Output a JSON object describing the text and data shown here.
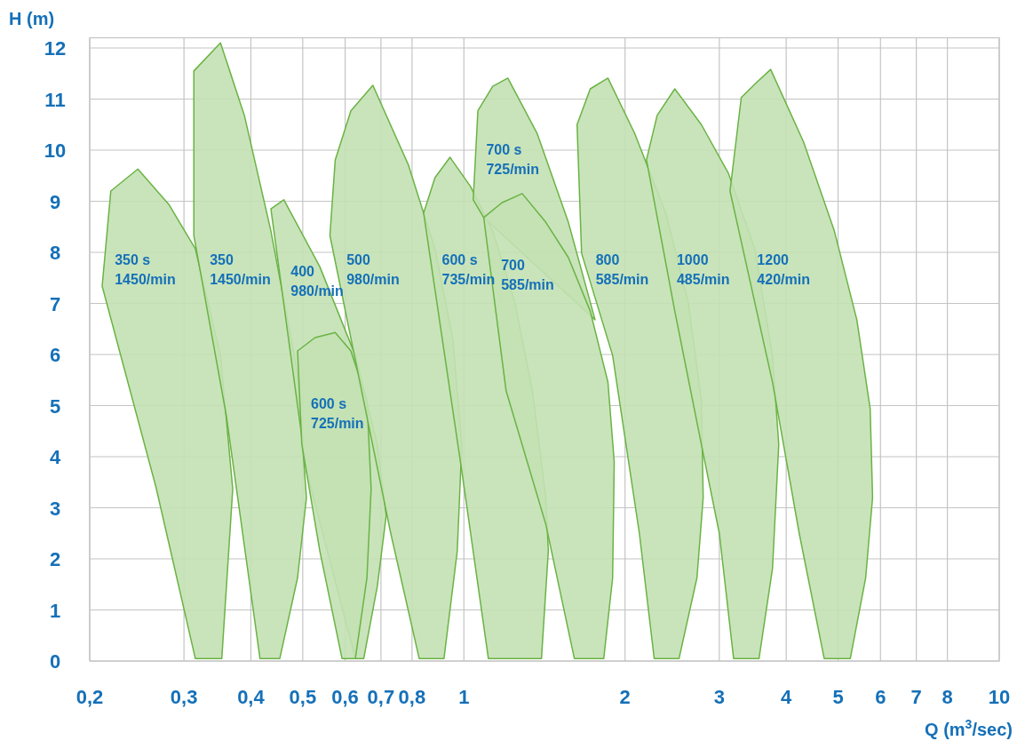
{
  "chart_data": {
    "type": "area",
    "xlabel": "Q (m$^{3}$/sec)",
    "ylabel": "H (m)",
    "log": "x",
    "grid": true,
    "xlim": [
      0.2,
      10
    ],
    "ylim": [
      0,
      12.2
    ],
    "xticks": [
      {
        "value": 0.2,
        "label": "0,2"
      },
      {
        "value": 0.3,
        "label": "0,3"
      },
      {
        "value": 0.4,
        "label": "0,4"
      },
      {
        "value": 0.5,
        "label": "0,5"
      },
      {
        "value": 0.6,
        "label": "0,6"
      },
      {
        "value": 0.7,
        "label": "0,7"
      },
      {
        "value": 0.8,
        "label": "0,8"
      },
      1,
      2,
      3,
      4,
      5,
      6,
      7,
      8,
      10
    ],
    "yticks": [
      0,
      1,
      2,
      3,
      4,
      5,
      6,
      7,
      8,
      9,
      10,
      11,
      12
    ],
    "series": [
      {
        "name": "350 s\n1450/min",
        "color": "#6ab344",
        "x": [
          0.211,
          0.219,
          0.246,
          0.281,
          0.315,
          0.351,
          0.37,
          0.353,
          0.315,
          0.266
        ],
        "values": [
          7.34,
          9.2,
          9.63,
          8.94,
          8.07,
          5.98,
          3.37,
          0.05,
          0.05,
          3.4
        ]
      },
      {
        "name": "350\n1450/min",
        "color": "#6ab344",
        "x": [
          0.313,
          0.313,
          0.351,
          0.389,
          0.436,
          0.489,
          0.508,
          0.489,
          0.453,
          0.416,
          0.36
        ],
        "values": [
          8.33,
          11.55,
          12.1,
          10.68,
          8.42,
          5.63,
          3.2,
          1.63,
          0.05,
          0.05,
          4.8
        ]
      },
      {
        "name": "400\n980/min",
        "color": "#6ab344",
        "x": [
          0.436,
          0.461,
          0.538,
          0.627,
          0.689,
          0.716,
          0.689,
          0.65,
          0.627,
          0.508
        ],
        "values": [
          8.85,
          9.03,
          7.72,
          5.98,
          4.24,
          2.85,
          1.46,
          0.05,
          0.05,
          3.72
        ]
      },
      {
        "name": "600 s\n725/min",
        "color": "#6ab344",
        "x": [
          0.489,
          0.527,
          0.575,
          0.615,
          0.659,
          0.671,
          0.659,
          0.627,
          0.592,
          0.538,
          0.498
        ],
        "values": [
          6.07,
          6.33,
          6.43,
          6.07,
          5.11,
          3.37,
          1.63,
          0.05,
          0.05,
          2.16,
          4.24
        ]
      },
      {
        "name": "500\n980/min",
        "color": "#6ab344",
        "x": [
          0.562,
          0.575,
          0.615,
          0.676,
          0.787,
          0.883,
          0.953,
          0.991,
          0.972,
          0.918,
          0.825,
          0.73
        ],
        "values": [
          8.33,
          9.81,
          10.77,
          11.27,
          9.72,
          8.07,
          6.33,
          4.24,
          2.16,
          0.05,
          0.05,
          2.5
        ]
      },
      {
        "name": "600 s\n735/min",
        "color": "#6ab344",
        "x": [
          0.841,
          0.883,
          0.942,
          1.029,
          1.132,
          1.245,
          1.343,
          1.422,
          1.438,
          1.396,
          1.111,
          0.991
        ],
        "values": [
          8.77,
          9.46,
          9.86,
          9.29,
          8.42,
          7.03,
          5.29,
          3.2,
          2.16,
          0.05,
          0.05,
          3.72
        ]
      },
      {
        "name": "700 s\n725/min",
        "color": "#6ab344",
        "x": [
          1.041,
          1.062,
          1.132,
          1.208,
          1.37,
          1.567,
          1.758,
          1.089
        ],
        "values": [
          9.03,
          10.77,
          11.25,
          11.41,
          10.33,
          8.59,
          6.68,
          8.68
        ]
      },
      {
        "name": "700\n585/min",
        "color": "#6ab344",
        "x": [
          1.089,
          1.177,
          1.285,
          1.422,
          1.567,
          1.722,
          1.858,
          1.909,
          1.896,
          1.825,
          1.608,
          1.422,
          1.199
        ],
        "values": [
          8.68,
          8.97,
          9.15,
          8.59,
          7.9,
          6.85,
          5.46,
          3.9,
          1.63,
          0.05,
          0.05,
          2.68,
          5.29
        ]
      },
      {
        "name": "800\n585/min",
        "color": "#6ab344",
        "x": [
          1.659,
          1.627,
          1.722,
          1.858,
          2.084,
          2.383,
          2.624,
          2.777,
          2.799,
          2.725,
          2.523,
          2.267,
          2.127,
          1.896
        ],
        "values": [
          7.98,
          10.5,
          11.2,
          11.41,
          10.33,
          8.77,
          7.03,
          5.11,
          3.2,
          1.63,
          0.05,
          0.05,
          2.5,
          5.98
        ]
      },
      {
        "name": "1000\n485/min",
        "color": "#6ab344",
        "x": [
          2.193,
          2.296,
          2.477,
          2.777,
          3.119,
          3.494,
          3.771,
          3.874,
          3.771,
          3.559,
          3.19,
          3.0,
          2.777,
          2.477
        ],
        "values": [
          9.81,
          10.68,
          11.2,
          10.5,
          9.55,
          8.07,
          5.98,
          4.24,
          1.81,
          0.05,
          0.05,
          2.5,
          4.24,
          6.85
        ]
      },
      {
        "name": "1200\n420/min",
        "color": "#6ab344",
        "x": [
          3.141,
          3.297,
          3.494,
          3.741,
          4.31,
          4.92,
          5.42,
          5.74,
          5.8,
          5.63,
          5.27,
          4.71,
          4.23,
          3.771
        ],
        "values": [
          9.2,
          11.03,
          11.29,
          11.58,
          10.16,
          8.42,
          6.68,
          4.94,
          3.2,
          1.63,
          0.05,
          0.05,
          2.5,
          5.46
        ]
      }
    ]
  }
}
